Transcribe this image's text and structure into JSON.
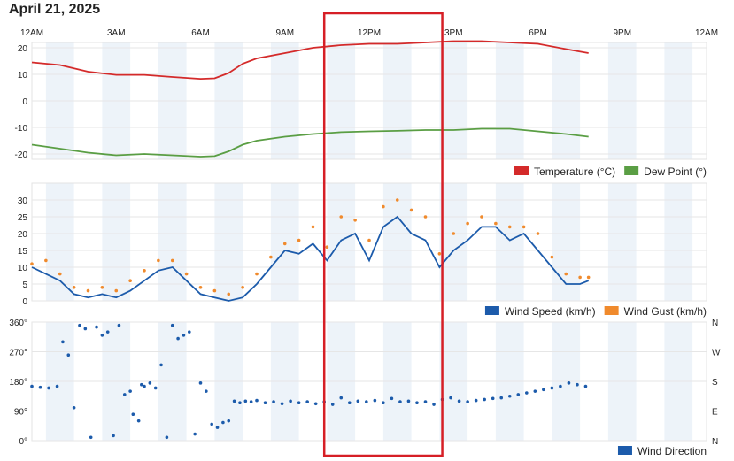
{
  "page": {
    "title": "April 21, 2025"
  },
  "colors": {
    "temperature": "#d42a2a",
    "dew_point": "#5a9e44",
    "wind_speed": "#1c5bab",
    "wind_gust": "#f08a2c",
    "wind_direction": "#1c5bab",
    "band": "#edf3f9",
    "highlight": "#d61f26"
  },
  "time_axis": {
    "labels": [
      "12AM",
      "3AM",
      "6AM",
      "9AM",
      "12PM",
      "3PM",
      "6PM",
      "9PM",
      "12AM"
    ],
    "hours": [
      0,
      3,
      6,
      9,
      12,
      15,
      18,
      21,
      24
    ]
  },
  "highlight_box": {
    "start_hour": 10.4,
    "end_hour": 14.6
  },
  "chart_data": [
    {
      "type": "line",
      "title": "",
      "x_unit": "hour",
      "ylim": [
        -22,
        22
      ],
      "yticks": [
        20,
        10,
        0,
        -10,
        -20
      ],
      "legend_position": "bottom-right",
      "series": [
        {
          "name": "Temperature (°C)",
          "color": "#d42a2a",
          "x": [
            0,
            1,
            2,
            3,
            4,
            5,
            6,
            6.5,
            7,
            7.5,
            8,
            9,
            10,
            11,
            12,
            13,
            14,
            15,
            16,
            17,
            18,
            19,
            19.8
          ],
          "y": [
            14.5,
            13.5,
            11,
            9.8,
            9.8,
            9,
            8.3,
            8.5,
            10.5,
            14,
            16,
            18,
            20,
            21,
            21.5,
            21.5,
            22,
            22.5,
            22.5,
            22,
            21.5,
            19.5,
            18
          ]
        },
        {
          "name": "Dew Point (°)",
          "color": "#5a9e44",
          "x": [
            0,
            1,
            2,
            3,
            4,
            5,
            6,
            6.5,
            7,
            7.5,
            8,
            9,
            10,
            11,
            12,
            13,
            14,
            15,
            16,
            17,
            18,
            19,
            19.8
          ],
          "y": [
            -16.5,
            -18,
            -19.5,
            -20.5,
            -20,
            -20.5,
            -21,
            -20.8,
            -19,
            -16.5,
            -15,
            -13.5,
            -12.5,
            -11.8,
            -11.5,
            -11.3,
            -11,
            -11,
            -10.5,
            -10.5,
            -11.5,
            -12.5,
            -13.5
          ]
        }
      ]
    },
    {
      "type": "line",
      "title": "",
      "x_unit": "hour",
      "ylim": [
        0,
        35
      ],
      "yticks": [
        30,
        25,
        20,
        15,
        10,
        5,
        0
      ],
      "legend_position": "bottom-right",
      "series": [
        {
          "name": "Wind Speed (km/h)",
          "color": "#1c5bab",
          "x": [
            0,
            0.5,
            1,
            1.5,
            2,
            2.5,
            3,
            3.5,
            4,
            4.5,
            5,
            5.5,
            6,
            6.5,
            7,
            7.5,
            8,
            8.5,
            9,
            9.5,
            10,
            10.5,
            11,
            11.5,
            12,
            12.5,
            13,
            13.5,
            14,
            14.5,
            15,
            15.5,
            16,
            16.5,
            17,
            17.5,
            18,
            18.5,
            19,
            19.5,
            19.8
          ],
          "y": [
            10,
            8,
            6,
            2,
            1,
            2,
            1,
            3,
            6,
            9,
            10,
            6,
            2,
            1,
            0,
            1,
            5,
            10,
            15,
            14,
            17,
            12,
            18,
            20,
            12,
            22,
            25,
            20,
            18,
            10,
            15,
            18,
            22,
            22,
            18,
            20,
            15,
            10,
            5,
            5,
            6
          ]
        },
        {
          "name": "Wind Gust (km/h)",
          "color": "#f08a2c",
          "x": [
            0,
            0.5,
            1,
            1.5,
            2,
            2.5,
            3,
            3.5,
            4,
            4.5,
            5,
            5.5,
            6,
            6.5,
            7,
            7.5,
            8,
            8.5,
            9,
            9.5,
            10,
            10.5,
            11,
            11.5,
            12,
            12.5,
            13,
            13.5,
            14,
            14.5,
            15,
            15.5,
            16,
            16.5,
            17,
            17.5,
            18,
            18.5,
            19,
            19.5,
            19.8
          ],
          "y": [
            11,
            12,
            8,
            4,
            3,
            4,
            3,
            6,
            9,
            12,
            12,
            8,
            4,
            3,
            2,
            4,
            8,
            13,
            17,
            18,
            22,
            16,
            25,
            24,
            18,
            28,
            30,
            27,
            25,
            14,
            20,
            23,
            25,
            23,
            22,
            22,
            20,
            13,
            8,
            7,
            7
          ]
        }
      ]
    },
    {
      "type": "scatter",
      "title": "",
      "x_unit": "hour",
      "ylim": [
        0,
        360
      ],
      "yticks": [
        360,
        270,
        180,
        90,
        0
      ],
      "ytick_labels": [
        "360°",
        "270°",
        "180°",
        "90°",
        "0°"
      ],
      "compass_labels": [
        "N",
        "W",
        "S",
        "E",
        "N"
      ],
      "legend_position": "bottom-right",
      "series": [
        {
          "name": "Wind Direction",
          "color": "#1c5bab",
          "x": [
            0,
            0.3,
            0.6,
            0.9,
            1.1,
            1.3,
            1.5,
            1.7,
            1.9,
            2.1,
            2.3,
            2.5,
            2.7,
            2.9,
            3.1,
            3.3,
            3.5,
            3.6,
            3.8,
            3.9,
            4.0,
            4.2,
            4.4,
            4.6,
            4.8,
            5.0,
            5.2,
            5.4,
            5.6,
            5.8,
            6.0,
            6.2,
            6.4,
            6.6,
            6.8,
            7.0,
            7.2,
            7.4,
            7.6,
            7.8,
            8.0,
            8.3,
            8.6,
            8.9,
            9.2,
            9.5,
            9.8,
            10.1,
            10.4,
            10.7,
            11.0,
            11.3,
            11.6,
            11.9,
            12.2,
            12.5,
            12.8,
            13.1,
            13.4,
            13.7,
            14.0,
            14.3,
            14.6,
            14.9,
            15.2,
            15.5,
            15.8,
            16.1,
            16.4,
            16.7,
            17.0,
            17.3,
            17.6,
            17.9,
            18.2,
            18.5,
            18.8,
            19.1,
            19.4,
            19.7
          ],
          "y": [
            165,
            162,
            160,
            165,
            300,
            260,
            100,
            350,
            340,
            10,
            345,
            320,
            330,
            15,
            350,
            140,
            150,
            80,
            60,
            170,
            165,
            175,
            160,
            230,
            10,
            350,
            310,
            320,
            330,
            20,
            175,
            150,
            50,
            40,
            55,
            60,
            120,
            115,
            120,
            118,
            122,
            115,
            118,
            112,
            120,
            115,
            118,
            112,
            118,
            110,
            130,
            115,
            120,
            118,
            122,
            115,
            128,
            118,
            120,
            115,
            118,
            110,
            125,
            130,
            120,
            118,
            122,
            125,
            128,
            130,
            135,
            140,
            145,
            150,
            155,
            160,
            165,
            175,
            170,
            165
          ]
        }
      ]
    }
  ]
}
